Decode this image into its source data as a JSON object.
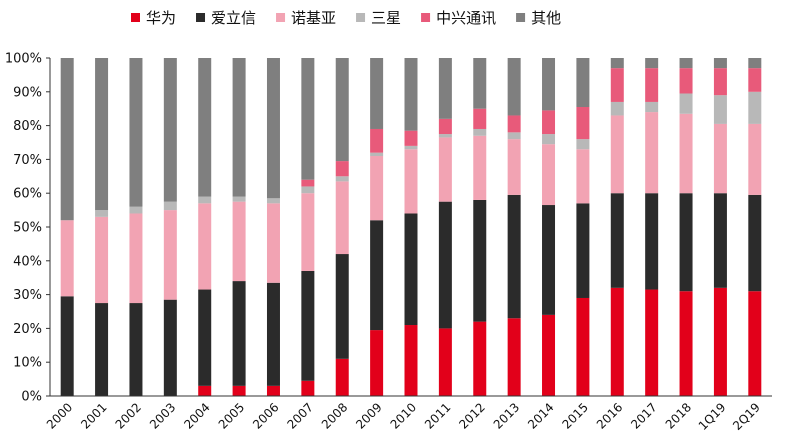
{
  "chart_data": {
    "type": "bar",
    "stacked": true,
    "ylim": [
      0,
      100
    ],
    "y_ticks": [
      "0%",
      "10%",
      "20%",
      "30%",
      "40%",
      "50%",
      "60%",
      "70%",
      "80%",
      "90%",
      "100%"
    ],
    "categories": [
      "2000",
      "2001",
      "2002",
      "2003",
      "2004",
      "2005",
      "2006",
      "2007",
      "2008",
      "2009",
      "2010",
      "2011",
      "2012",
      "2013",
      "2014",
      "2015",
      "2016",
      "2017",
      "2018",
      "1Q19",
      "2Q19"
    ],
    "series": [
      {
        "name": "华为",
        "color": "#e2001a",
        "values": [
          0,
          0,
          0,
          0,
          3,
          3,
          3,
          4.5,
          11,
          19.5,
          21,
          20,
          22,
          23,
          24,
          29,
          32,
          31.5,
          31,
          32,
          31
        ]
      },
      {
        "name": "爱立信",
        "color": "#2b2b2b",
        "values": [
          29.5,
          27.5,
          27.5,
          28.5,
          28.5,
          31,
          30.5,
          32.5,
          31,
          32.5,
          33,
          37.5,
          36,
          36.5,
          32.5,
          28,
          28,
          28.5,
          29,
          28,
          28.5
        ]
      },
      {
        "name": "诺基亚",
        "color": "#f2a3b3",
        "values": [
          22.5,
          25.5,
          26.5,
          26.5,
          25.5,
          23.5,
          23.5,
          23,
          21.5,
          19,
          19,
          19,
          19,
          16.5,
          18,
          16,
          23,
          24,
          23.5,
          20.5,
          21
        ]
      },
      {
        "name": "三星",
        "color": "#b8b8b8",
        "values": [
          0,
          2,
          2,
          2.5,
          2,
          1.5,
          1.5,
          2,
          1.5,
          1,
          1,
          1,
          2,
          2,
          3,
          3,
          4,
          3,
          6,
          8.5,
          9.5
        ]
      },
      {
        "name": "中兴通讯",
        "color": "#e85a7a",
        "values": [
          0,
          0,
          0,
          0,
          0,
          0,
          0,
          2,
          4.5,
          7,
          4.5,
          4.5,
          6,
          5,
          7,
          9.5,
          10,
          10,
          7.5,
          8,
          7
        ]
      },
      {
        "name": "其他",
        "color": "#7f7f7f",
        "values": [
          48,
          45,
          44,
          42.5,
          41,
          41,
          41.5,
          36,
          30.5,
          21,
          21.5,
          18,
          15,
          17,
          15.5,
          14.5,
          3,
          3,
          3,
          3,
          3
        ]
      }
    ]
  }
}
